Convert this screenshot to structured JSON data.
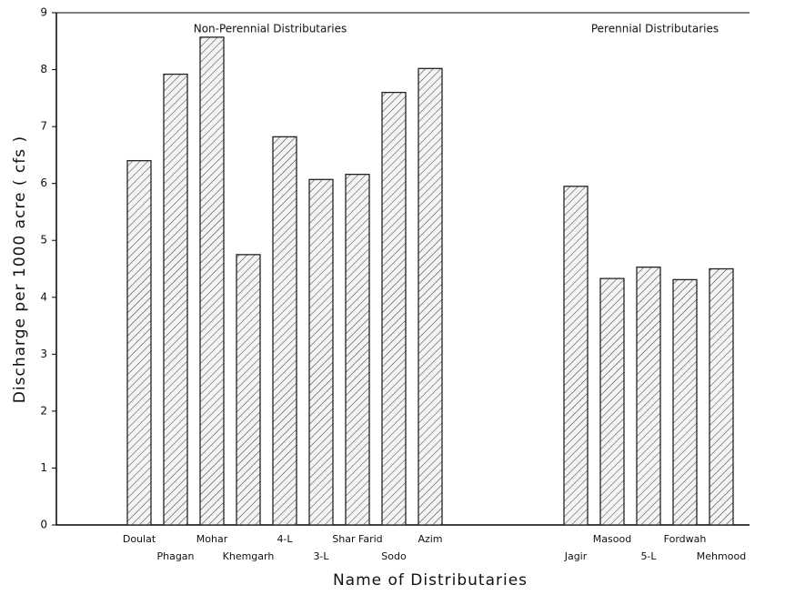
{
  "chart_data": {
    "type": "bar",
    "x_label": "Name of Distributaries",
    "y_label": "Discharge per 1000 acre ( cfs )",
    "annotations": [
      "Non-Perennial Distributaries",
      "Perennial Distributaries"
    ],
    "categories": [
      "Doulat",
      "Phagan",
      "Mohar",
      "Khemgarh",
      "4-L",
      "3-L",
      "Shar Farid",
      "Sodo",
      "Azim",
      null,
      null,
      null,
      "Jagir",
      "Masood",
      "5-L",
      "Fordwah",
      "Mehmood"
    ],
    "values": [
      6.4,
      7.92,
      8.57,
      4.75,
      6.82,
      6.07,
      6.16,
      7.6,
      8.02,
      null,
      null,
      null,
      5.95,
      4.33,
      4.53,
      4.31,
      4.5
    ],
    "color": "#222222",
    "ylim": [
      0,
      9
    ],
    "yticks": [
      0,
      1,
      2,
      3,
      4,
      5,
      6,
      7,
      8,
      9
    ]
  }
}
